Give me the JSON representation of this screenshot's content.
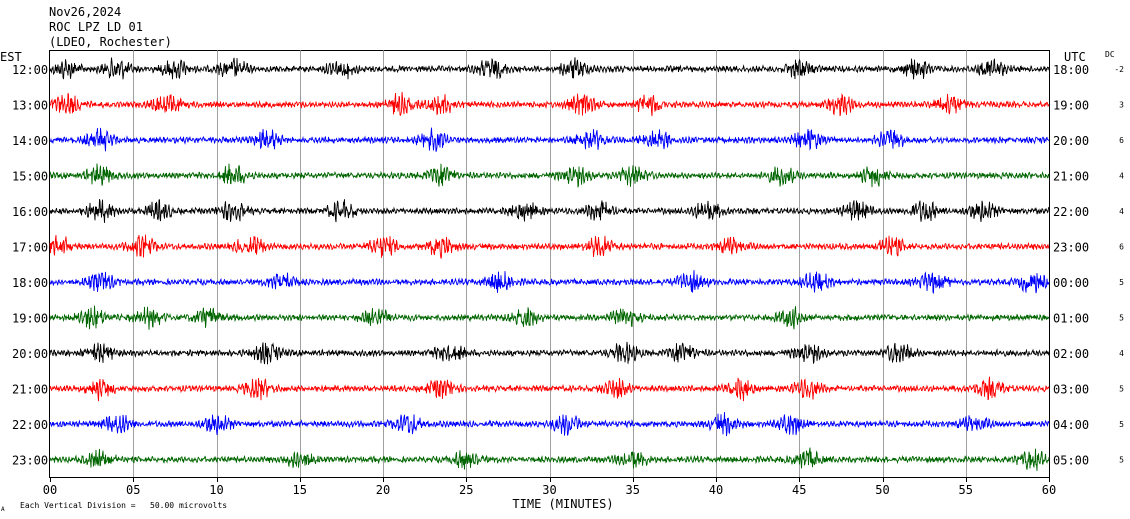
{
  "header": {
    "date": "Nov26,2024",
    "station": "ROC LPZ LD 01",
    "network": "(LDEO, Rochester)"
  },
  "left_axis_label": "EST",
  "right_axis_label": "UTC",
  "dc_label": "DC",
  "scale_note": "Each Vertical Division =   50.00 microvolts",
  "corner_mark": "A",
  "chart_data": {
    "type": "line",
    "xlabel": "TIME (MINUTES)",
    "xlim": [
      0,
      60
    ],
    "x_ticks": [
      "00",
      "05",
      "10",
      "15",
      "20",
      "25",
      "30",
      "35",
      "40",
      "45",
      "50",
      "55",
      "60"
    ],
    "trace_colors": [
      "#000000",
      "#ff0000",
      "#0000ff",
      "#006600"
    ],
    "traces": [
      {
        "est": "12:00",
        "utc": "18:00",
        "dc": "-2",
        "bursts": [
          1,
          4,
          7.5,
          11,
          17.5,
          26.5,
          31.5,
          45,
          52,
          56.5
        ]
      },
      {
        "est": "13:00",
        "utc": "19:00",
        "dc": "3",
        "bursts": [
          1,
          7,
          21,
          23.5,
          32,
          36,
          47.5,
          54
        ]
      },
      {
        "est": "14:00",
        "utc": "20:00",
        "dc": "6",
        "bursts": [
          3,
          13,
          23,
          32.5,
          36.5,
          45.5,
          50.5
        ]
      },
      {
        "est": "15:00",
        "utc": "21:00",
        "dc": "4",
        "bursts": [
          3,
          11,
          23.5,
          31.5,
          35,
          44,
          49.5
        ]
      },
      {
        "est": "16:00",
        "utc": "22:00",
        "dc": "4",
        "bursts": [
          3,
          6.5,
          11,
          17.5,
          28.5,
          33,
          39.5,
          48.5,
          52.5,
          56
        ]
      },
      {
        "est": "17:00",
        "utc": "23:00",
        "dc": "6",
        "bursts": [
          0.5,
          5.5,
          12,
          20,
          23.5,
          33,
          41,
          50.5
        ]
      },
      {
        "est": "18:00",
        "utc": "00:00",
        "dc": "5",
        "bursts": [
          3,
          14,
          27,
          38.5,
          46,
          53,
          59
        ]
      },
      {
        "est": "19:00",
        "utc": "01:00",
        "dc": "5",
        "bursts": [
          2.5,
          6,
          9.5,
          19.5,
          28.5,
          34.5,
          44.5
        ]
      },
      {
        "est": "20:00",
        "utc": "02:00",
        "dc": "4",
        "bursts": [
          3,
          13,
          24,
          34.5,
          38,
          45.5,
          51
        ]
      },
      {
        "est": "21:00",
        "utc": "03:00",
        "dc": "5",
        "bursts": [
          3,
          12.5,
          23.5,
          34,
          41.5,
          45.5,
          56.5
        ]
      },
      {
        "est": "22:00",
        "utc": "04:00",
        "dc": "5",
        "bursts": [
          4,
          10,
          21.5,
          31,
          40.5,
          44.5,
          55.5
        ]
      },
      {
        "est": "23:00",
        "utc": "05:00",
        "dc": "5",
        "bursts": [
          3,
          15,
          25,
          35,
          45.5,
          59
        ]
      }
    ]
  }
}
